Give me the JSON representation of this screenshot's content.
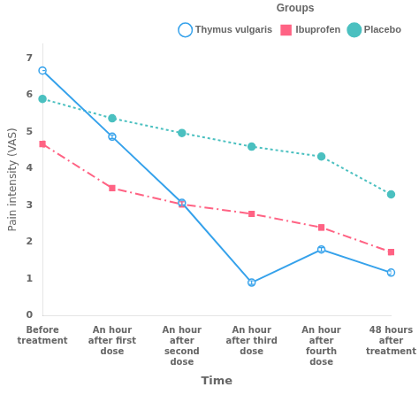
{
  "chart_data": {
    "type": "line",
    "xlabel": "Time",
    "ylabel": "Pain intensity (VAS)",
    "legend_title": "Groups",
    "legend": "upper right",
    "grid": false,
    "categories": [
      "Before\ntreatment",
      "An hour\nafter first\ndose",
      "An hour\nafter\nsecond\ndose",
      "An hour\nafter third\ndose",
      "An hour\nafter\nfourth\ndose",
      "48 hours\nafter\ntreatment"
    ],
    "series": [
      {
        "name": "Thymus vulgaris",
        "values": [
          6.67,
          4.87,
          3.07,
          0.9,
          1.8,
          1.17
        ],
        "errors": [
          0.0,
          0.05,
          0.05,
          0.05,
          0.05,
          0.05
        ],
        "marker": "open_circle",
        "line_style": "solid"
      },
      {
        "name": "Ibuprofen",
        "values": [
          4.67,
          3.47,
          3.03,
          2.77,
          2.4,
          1.73
        ],
        "errors": [
          0.08,
          0.07,
          0.07,
          0.07,
          0.07,
          0.07
        ],
        "marker": "square",
        "line_style": "dashdot"
      },
      {
        "name": "Placebo",
        "values": [
          5.9,
          5.37,
          4.97,
          4.6,
          4.33,
          3.3
        ],
        "errors": [
          0.0,
          0.05,
          0.05,
          0.05,
          0.05,
          0.05
        ],
        "marker": "circle",
        "line_style": "dotted"
      }
    ],
    "ylim": [
      0,
      7.4
    ],
    "yticks": [
      0,
      1,
      2,
      3,
      4,
      5,
      6,
      7
    ]
  }
}
